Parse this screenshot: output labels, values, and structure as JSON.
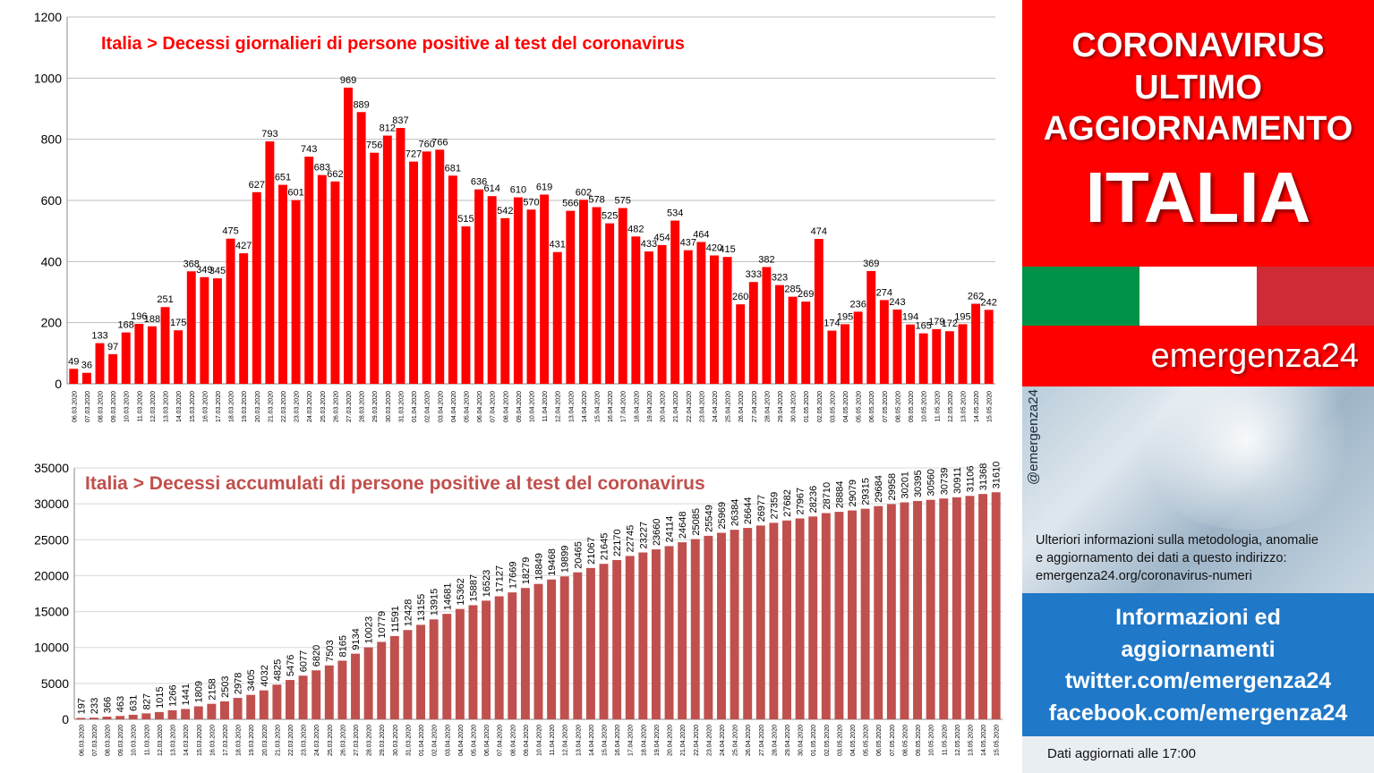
{
  "dates": [
    "06.03.2020",
    "07.03.2020",
    "08.03.2020",
    "09.03.2020",
    "10.03.2020",
    "11.03.2020",
    "12.03.2020",
    "13.03.2020",
    "14.03.2020",
    "15.03.2020",
    "16.03.2020",
    "17.03.2020",
    "18.03.2020",
    "19.03.2020",
    "20.03.2020",
    "21.03.2020",
    "22.03.2020",
    "23.03.2020",
    "24.03.2020",
    "25.03.2020",
    "26.03.2020",
    "27.03.2020",
    "28.03.2020",
    "29.03.2020",
    "30.03.2020",
    "31.03.2020",
    "01.04.2020",
    "02.04.2020",
    "03.04.2020",
    "04.04.2020",
    "05.04.2020",
    "06.04.2020",
    "07.04.2020",
    "08.04.2020",
    "09.04.2020",
    "10.04.2020",
    "11.04.2020",
    "12.04.2020",
    "13.04.2020",
    "14.04.2020",
    "15.04.2020",
    "16.04.2020",
    "17.04.2020",
    "18.04.2020",
    "19.04.2020",
    "20.04.2020",
    "21.04.2020",
    "22.04.2020",
    "23.04.2020",
    "24.04.2020",
    "25.04.2020",
    "26.04.2020",
    "27.04.2020",
    "28.04.2020",
    "29.04.2020",
    "30.04.2020",
    "01.05.2020",
    "02.05.2020",
    "03.05.2020",
    "04.05.2020",
    "05.05.2020",
    "06.05.2020",
    "07.05.2020",
    "08.05.2020",
    "09.05.2020",
    "10.05.2020",
    "11.05.2020",
    "12.05.2020",
    "13.05.2020",
    "14.05.2020",
    "15.05.2020"
  ],
  "chart_data": [
    {
      "type": "bar",
      "title": "Italia > Decessi giornalieri di persone positive al test del coronavirus",
      "ylim": [
        0,
        1200
      ],
      "yticks": [
        0,
        200,
        400,
        600,
        800,
        1000,
        1200
      ],
      "grid": true,
      "color": "#ff0000",
      "values": [
        49,
        36,
        133,
        97,
        168,
        196,
        188,
        251,
        175,
        368,
        349,
        345,
        475,
        427,
        627,
        793,
        651,
        601,
        743,
        683,
        662,
        969,
        889,
        756,
        812,
        837,
        727,
        760,
        766,
        681,
        515,
        636,
        614,
        542,
        610,
        570,
        619,
        431,
        566,
        602,
        578,
        525,
        575,
        482,
        433,
        454,
        534,
        437,
        464,
        420,
        415,
        260,
        333,
        382,
        323,
        285,
        269,
        474,
        174,
        195,
        236,
        369,
        274,
        243,
        194,
        165,
        179,
        172,
        195,
        262,
        242
      ]
    },
    {
      "type": "bar",
      "title": "Italia > Decessi accumulati di persone positive al test del coronavirus",
      "ylim": [
        0,
        35000
      ],
      "yticks": [
        0,
        5000,
        10000,
        15000,
        20000,
        25000,
        30000,
        35000
      ],
      "grid": true,
      "color": "#c0504d",
      "values": [
        197,
        233,
        366,
        463,
        631,
        827,
        1015,
        1266,
        1441,
        1809,
        2158,
        2503,
        2978,
        3405,
        4032,
        4825,
        5476,
        6077,
        6820,
        7503,
        8165,
        9134,
        10023,
        10779,
        11591,
        12428,
        13155,
        13915,
        14681,
        15362,
        15887,
        16523,
        17127,
        17669,
        18279,
        18849,
        19468,
        19899,
        20465,
        21067,
        21645,
        22170,
        22745,
        23227,
        23660,
        24114,
        24648,
        25085,
        25549,
        25969,
        26384,
        26644,
        26977,
        27359,
        27682,
        27967,
        28236,
        28710,
        28884,
        29079,
        29315,
        29684,
        29958,
        30201,
        30395,
        30560,
        30739,
        30911,
        31106,
        31368,
        31610
      ]
    }
  ],
  "side": {
    "header_line1": "CORONAVIRUS",
    "header_line2": "ULTIMO",
    "header_line3": "AGGIORNAMENTO",
    "header_line4": "ITALIA",
    "flag_colors": [
      "#009246",
      "#ffffff",
      "#ce2b37"
    ],
    "brand": "emergenza24",
    "handle": "@emergenza24",
    "info_line1": "Ulteriori informazioni sulla metodologia, anomalie",
    "info_line2": "e aggiornamento dei dati a questo indirizzo:",
    "info_line3": "emergenza24.org/coronavirus-numeri",
    "social_line1": "Informazioni ed",
    "social_line2": "aggiornamenti",
    "social_line3": "twitter.com/emergenza24",
    "social_line4": "facebook.com/emergenza24",
    "updated": "Dati aggiornati alle 17:00"
  }
}
